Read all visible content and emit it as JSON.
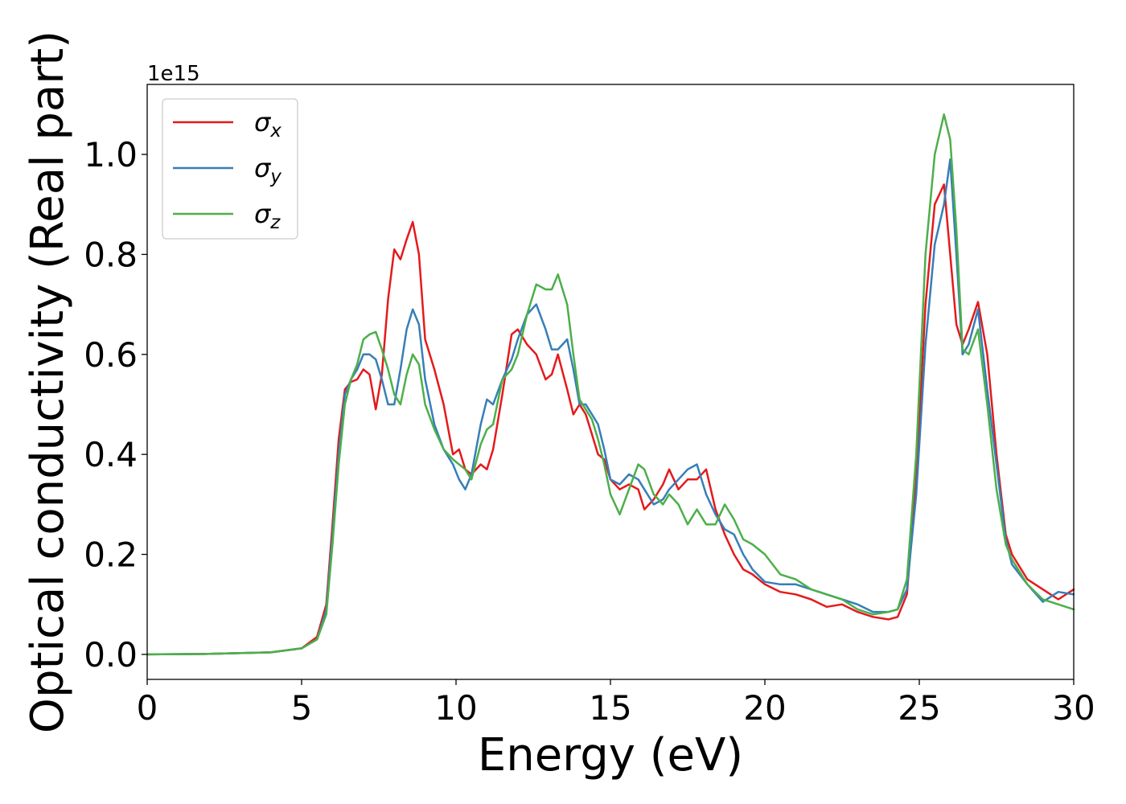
{
  "chart_data": {
    "type": "line",
    "xlabel": "Energy (eV)",
    "ylabel": "Optical conductivity (Real part)",
    "offset_label": "1e15",
    "y_scale_factor": 1000000000000000.0,
    "xlim": [
      0,
      30
    ],
    "ylim": [
      -0.05,
      1.14
    ],
    "xticks": [
      0,
      5,
      10,
      15,
      20,
      25,
      30
    ],
    "xtick_labels": [
      "0",
      "5",
      "10",
      "15",
      "20",
      "25",
      "30"
    ],
    "yticks": [
      0.0,
      0.2,
      0.4,
      0.6,
      0.8,
      1.0
    ],
    "ytick_labels": [
      "0.0",
      "0.2",
      "0.4",
      "0.6",
      "0.8",
      "1.0"
    ],
    "grid": false,
    "legend_position": "upper-left",
    "series": [
      {
        "name": "σ_x",
        "legend_base": "σ",
        "legend_sub": "x",
        "color": "#e41a1c",
        "x": [
          0,
          2,
          4,
          5,
          5.5,
          5.8,
          6.0,
          6.2,
          6.4,
          6.6,
          6.8,
          7.0,
          7.2,
          7.4,
          7.6,
          7.8,
          8.0,
          8.2,
          8.4,
          8.6,
          8.8,
          9.0,
          9.3,
          9.6,
          9.9,
          10.1,
          10.3,
          10.5,
          10.8,
          11.0,
          11.2,
          11.5,
          11.8,
          12.0,
          12.3,
          12.6,
          12.9,
          13.1,
          13.3,
          13.6,
          13.8,
          14.0,
          14.2,
          14.4,
          14.6,
          14.8,
          15.0,
          15.3,
          15.6,
          15.9,
          16.1,
          16.4,
          16.7,
          16.9,
          17.2,
          17.5,
          17.8,
          18.1,
          18.4,
          18.7,
          19.0,
          19.3,
          19.6,
          20.0,
          20.5,
          21.0,
          21.5,
          22.0,
          22.5,
          23.0,
          23.5,
          24.0,
          24.3,
          24.6,
          24.9,
          25.2,
          25.5,
          25.8,
          26.0,
          26.2,
          26.4,
          26.6,
          26.9,
          27.2,
          27.5,
          27.8,
          28.0,
          28.5,
          29.0,
          29.5,
          30.0
        ],
        "values": [
          0.0,
          0.001,
          0.004,
          0.012,
          0.035,
          0.1,
          0.26,
          0.43,
          0.53,
          0.545,
          0.55,
          0.57,
          0.56,
          0.49,
          0.56,
          0.71,
          0.81,
          0.79,
          0.83,
          0.865,
          0.8,
          0.63,
          0.57,
          0.5,
          0.4,
          0.41,
          0.37,
          0.36,
          0.38,
          0.37,
          0.41,
          0.52,
          0.64,
          0.65,
          0.62,
          0.6,
          0.55,
          0.56,
          0.6,
          0.53,
          0.48,
          0.5,
          0.48,
          0.44,
          0.4,
          0.39,
          0.35,
          0.33,
          0.34,
          0.33,
          0.29,
          0.31,
          0.34,
          0.37,
          0.33,
          0.35,
          0.35,
          0.37,
          0.29,
          0.24,
          0.2,
          0.17,
          0.16,
          0.14,
          0.125,
          0.12,
          0.11,
          0.095,
          0.1,
          0.085,
          0.075,
          0.07,
          0.075,
          0.12,
          0.35,
          0.7,
          0.9,
          0.94,
          0.8,
          0.66,
          0.62,
          0.65,
          0.705,
          0.6,
          0.4,
          0.24,
          0.2,
          0.15,
          0.13,
          0.11,
          0.13
        ]
      },
      {
        "name": "σ_y",
        "legend_base": "σ",
        "legend_sub": "y",
        "color": "#377eb8",
        "x": [
          0,
          2,
          4,
          5,
          5.5,
          5.8,
          6.0,
          6.2,
          6.4,
          6.6,
          6.8,
          7.0,
          7.2,
          7.4,
          7.6,
          7.8,
          8.0,
          8.2,
          8.4,
          8.6,
          8.8,
          9.0,
          9.3,
          9.6,
          9.9,
          10.1,
          10.3,
          10.5,
          10.8,
          11.0,
          11.2,
          11.5,
          11.8,
          12.0,
          12.3,
          12.6,
          12.9,
          13.1,
          13.3,
          13.6,
          13.8,
          14.0,
          14.2,
          14.4,
          14.6,
          14.8,
          15.0,
          15.3,
          15.6,
          15.9,
          16.1,
          16.4,
          16.7,
          16.9,
          17.2,
          17.5,
          17.8,
          18.1,
          18.4,
          18.7,
          19.0,
          19.3,
          19.6,
          20.0,
          20.5,
          21.0,
          21.5,
          22.0,
          22.5,
          23.0,
          23.5,
          24.0,
          24.3,
          24.6,
          24.9,
          25.2,
          25.5,
          25.8,
          26.0,
          26.2,
          26.4,
          26.6,
          26.9,
          27.2,
          27.5,
          27.8,
          28.0,
          28.5,
          29.0,
          29.5,
          30.0
        ],
        "values": [
          0.0,
          0.001,
          0.004,
          0.012,
          0.03,
          0.09,
          0.24,
          0.4,
          0.52,
          0.55,
          0.57,
          0.6,
          0.6,
          0.59,
          0.55,
          0.5,
          0.5,
          0.57,
          0.65,
          0.69,
          0.66,
          0.55,
          0.46,
          0.41,
          0.38,
          0.35,
          0.33,
          0.36,
          0.46,
          0.51,
          0.5,
          0.55,
          0.59,
          0.63,
          0.68,
          0.7,
          0.65,
          0.61,
          0.61,
          0.63,
          0.57,
          0.5,
          0.5,
          0.48,
          0.46,
          0.41,
          0.35,
          0.34,
          0.36,
          0.35,
          0.33,
          0.3,
          0.31,
          0.33,
          0.35,
          0.37,
          0.38,
          0.32,
          0.28,
          0.25,
          0.24,
          0.2,
          0.17,
          0.145,
          0.14,
          0.14,
          0.13,
          0.12,
          0.11,
          0.1,
          0.085,
          0.085,
          0.09,
          0.13,
          0.32,
          0.62,
          0.82,
          0.9,
          0.99,
          0.8,
          0.6,
          0.62,
          0.69,
          0.53,
          0.38,
          0.23,
          0.18,
          0.14,
          0.105,
          0.125,
          0.12
        ]
      },
      {
        "name": "σ_z",
        "legend_base": "σ",
        "legend_sub": "z",
        "color": "#4daf4a",
        "x": [
          0,
          2,
          4,
          5,
          5.5,
          5.8,
          6.0,
          6.2,
          6.4,
          6.6,
          6.8,
          7.0,
          7.2,
          7.4,
          7.6,
          7.8,
          8.0,
          8.2,
          8.4,
          8.6,
          8.8,
          9.0,
          9.3,
          9.6,
          9.9,
          10.1,
          10.3,
          10.5,
          10.8,
          11.0,
          11.2,
          11.5,
          11.8,
          12.0,
          12.3,
          12.6,
          12.9,
          13.1,
          13.3,
          13.6,
          13.8,
          14.0,
          14.2,
          14.4,
          14.6,
          14.8,
          15.0,
          15.3,
          15.6,
          15.9,
          16.1,
          16.4,
          16.7,
          16.9,
          17.2,
          17.5,
          17.8,
          18.1,
          18.4,
          18.7,
          19.0,
          19.3,
          19.6,
          20.0,
          20.5,
          21.0,
          21.5,
          22.0,
          22.5,
          23.0,
          23.5,
          24.0,
          24.3,
          24.6,
          24.9,
          25.2,
          25.5,
          25.8,
          26.0,
          26.2,
          26.4,
          26.6,
          26.9,
          27.2,
          27.5,
          27.8,
          28.0,
          28.5,
          29.0,
          29.5,
          30.0
        ],
        "values": [
          0.0,
          0.001,
          0.004,
          0.012,
          0.03,
          0.08,
          0.22,
          0.38,
          0.5,
          0.55,
          0.58,
          0.63,
          0.64,
          0.645,
          0.61,
          0.57,
          0.52,
          0.5,
          0.56,
          0.6,
          0.58,
          0.5,
          0.45,
          0.41,
          0.39,
          0.38,
          0.37,
          0.35,
          0.42,
          0.45,
          0.46,
          0.55,
          0.57,
          0.6,
          0.68,
          0.74,
          0.73,
          0.73,
          0.76,
          0.7,
          0.6,
          0.51,
          0.49,
          0.47,
          0.43,
          0.38,
          0.32,
          0.28,
          0.33,
          0.38,
          0.37,
          0.32,
          0.3,
          0.32,
          0.3,
          0.26,
          0.29,
          0.26,
          0.26,
          0.3,
          0.27,
          0.23,
          0.22,
          0.2,
          0.16,
          0.15,
          0.13,
          0.12,
          0.11,
          0.09,
          0.08,
          0.085,
          0.09,
          0.15,
          0.4,
          0.8,
          1.0,
          1.08,
          1.03,
          0.85,
          0.61,
          0.6,
          0.65,
          0.5,
          0.33,
          0.22,
          0.19,
          0.14,
          0.11,
          0.1,
          0.09
        ]
      }
    ]
  }
}
